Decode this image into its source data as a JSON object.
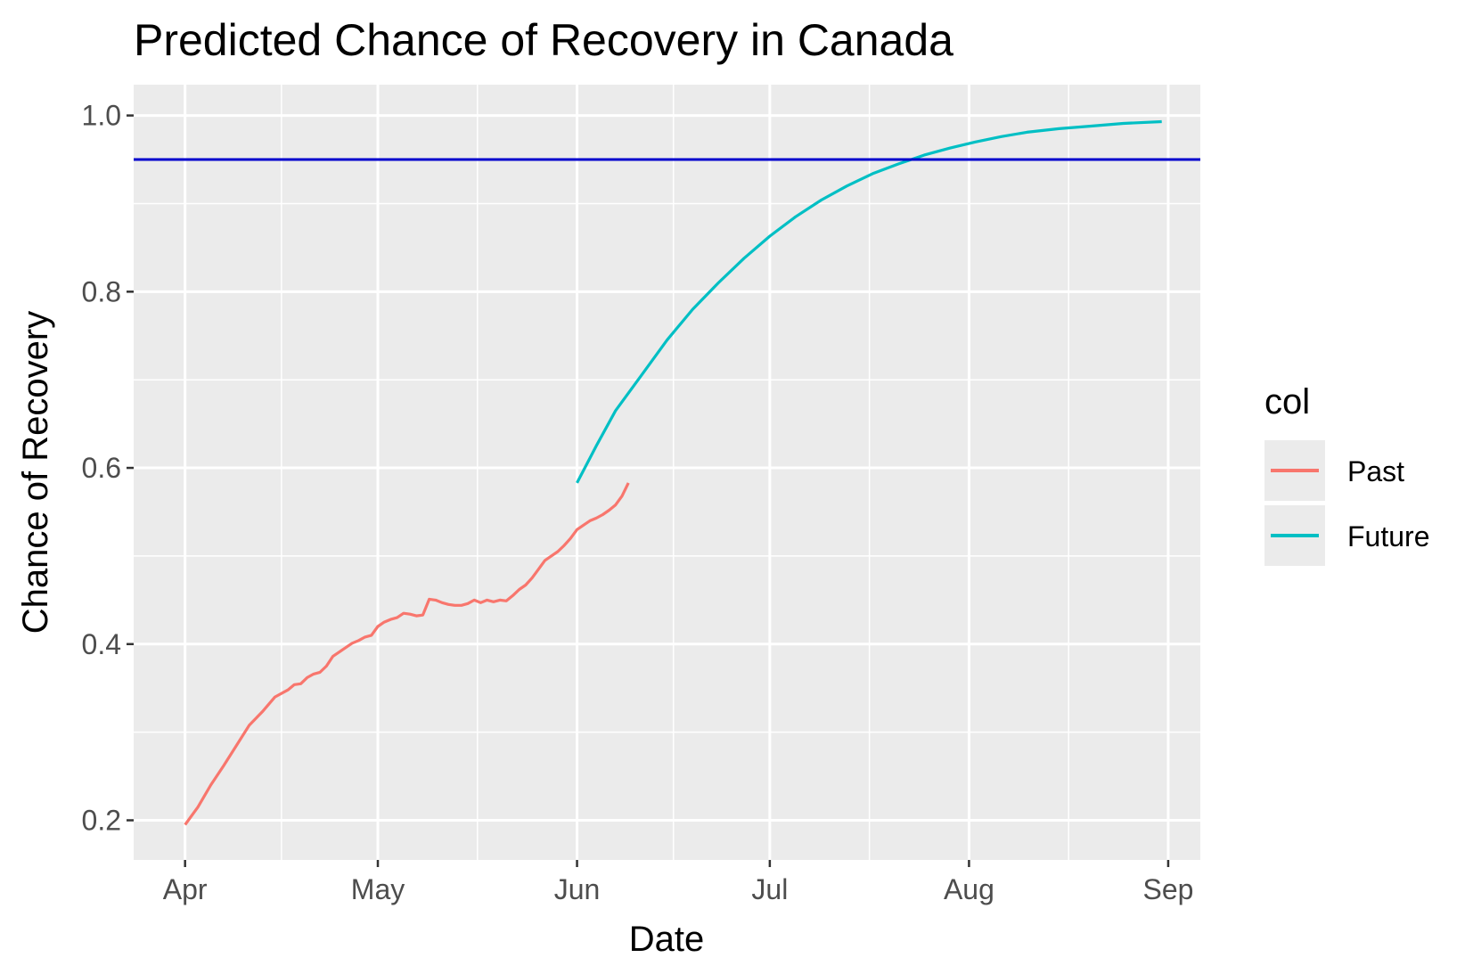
{
  "chart_data": {
    "type": "line",
    "title": "Predicted Chance of Recovery in Canada",
    "xlabel": "Date",
    "ylabel": "Chance of Recovery",
    "x_ticks": [
      "Apr",
      "May",
      "Jun",
      "Jul",
      "Aug",
      "Sep"
    ],
    "y_ticks": [
      "0.2",
      "0.4",
      "0.6",
      "0.8",
      "1.0"
    ],
    "xlim": [
      "2020-03-24",
      "2020-09-06"
    ],
    "ylim": [
      0.155,
      1.035
    ],
    "grid": true,
    "legend": {
      "title": "col",
      "position": "right",
      "entries": [
        {
          "label": "Past",
          "color": "#F8766D"
        },
        {
          "label": "Future",
          "color": "#00BFC4"
        }
      ]
    },
    "reference_line": {
      "y": 0.95,
      "color": "#0000CD"
    },
    "series": [
      {
        "name": "Past",
        "color": "#F8766D",
        "points": [
          [
            "2020-04-01",
            0.195
          ],
          [
            "2020-04-03",
            0.215
          ],
          [
            "2020-04-05",
            0.24
          ],
          [
            "2020-04-07",
            0.262
          ],
          [
            "2020-04-09",
            0.285
          ],
          [
            "2020-04-11",
            0.308
          ],
          [
            "2020-04-13",
            0.323
          ],
          [
            "2020-04-15",
            0.34
          ],
          [
            "2020-04-17",
            0.348
          ],
          [
            "2020-04-18",
            0.354
          ],
          [
            "2020-04-19",
            0.355
          ],
          [
            "2020-04-20",
            0.362
          ],
          [
            "2020-04-21",
            0.366
          ],
          [
            "2020-04-22",
            0.368
          ],
          [
            "2020-04-23",
            0.375
          ],
          [
            "2020-04-24",
            0.386
          ],
          [
            "2020-04-25",
            0.391
          ],
          [
            "2020-04-26",
            0.396
          ],
          [
            "2020-04-27",
            0.401
          ],
          [
            "2020-04-28",
            0.404
          ],
          [
            "2020-04-29",
            0.408
          ],
          [
            "2020-04-30",
            0.41
          ],
          [
            "2020-05-01",
            0.42
          ],
          [
            "2020-05-02",
            0.425
          ],
          [
            "2020-05-03",
            0.428
          ],
          [
            "2020-05-04",
            0.43
          ],
          [
            "2020-05-05",
            0.435
          ],
          [
            "2020-05-06",
            0.434
          ],
          [
            "2020-05-07",
            0.432
          ],
          [
            "2020-05-08",
            0.433
          ],
          [
            "2020-05-09",
            0.451
          ],
          [
            "2020-05-10",
            0.45
          ],
          [
            "2020-05-11",
            0.447
          ],
          [
            "2020-05-12",
            0.445
          ],
          [
            "2020-05-13",
            0.444
          ],
          [
            "2020-05-14",
            0.444
          ],
          [
            "2020-05-15",
            0.446
          ],
          [
            "2020-05-16",
            0.45
          ],
          [
            "2020-05-17",
            0.447
          ],
          [
            "2020-05-18",
            0.45
          ],
          [
            "2020-05-19",
            0.448
          ],
          [
            "2020-05-20",
            0.45
          ],
          [
            "2020-05-21",
            0.449
          ],
          [
            "2020-05-22",
            0.455
          ],
          [
            "2020-05-23",
            0.462
          ],
          [
            "2020-05-24",
            0.467
          ],
          [
            "2020-05-25",
            0.475
          ],
          [
            "2020-05-26",
            0.485
          ],
          [
            "2020-05-27",
            0.495
          ],
          [
            "2020-05-28",
            0.5
          ],
          [
            "2020-05-29",
            0.505
          ],
          [
            "2020-05-30",
            0.512
          ],
          [
            "2020-05-31",
            0.52
          ],
          [
            "2020-06-01",
            0.53
          ],
          [
            "2020-06-02",
            0.535
          ],
          [
            "2020-06-03",
            0.54
          ],
          [
            "2020-06-04",
            0.543
          ],
          [
            "2020-06-05",
            0.547
          ],
          [
            "2020-06-06",
            0.552
          ],
          [
            "2020-06-07",
            0.558
          ],
          [
            "2020-06-08",
            0.568
          ],
          [
            "2020-06-09",
            0.583
          ]
        ]
      },
      {
        "name": "Future",
        "color": "#00BFC4",
        "points": [
          [
            "2020-06-01",
            0.583
          ],
          [
            "2020-06-04",
            0.625
          ],
          [
            "2020-06-07",
            0.665
          ],
          [
            "2020-06-11",
            0.705
          ],
          [
            "2020-06-15",
            0.745
          ],
          [
            "2020-06-19",
            0.78
          ],
          [
            "2020-06-23",
            0.81
          ],
          [
            "2020-06-27",
            0.838
          ],
          [
            "2020-07-01",
            0.863
          ],
          [
            "2020-07-05",
            0.885
          ],
          [
            "2020-07-09",
            0.904
          ],
          [
            "2020-07-13",
            0.92
          ],
          [
            "2020-07-17",
            0.934
          ],
          [
            "2020-07-21",
            0.945
          ],
          [
            "2020-07-25",
            0.955
          ],
          [
            "2020-07-29",
            0.963
          ],
          [
            "2020-08-02",
            0.97
          ],
          [
            "2020-08-06",
            0.976
          ],
          [
            "2020-08-10",
            0.981
          ],
          [
            "2020-08-15",
            0.985
          ],
          [
            "2020-08-20",
            0.988
          ],
          [
            "2020-08-25",
            0.991
          ],
          [
            "2020-08-31",
            0.993
          ]
        ]
      }
    ]
  }
}
